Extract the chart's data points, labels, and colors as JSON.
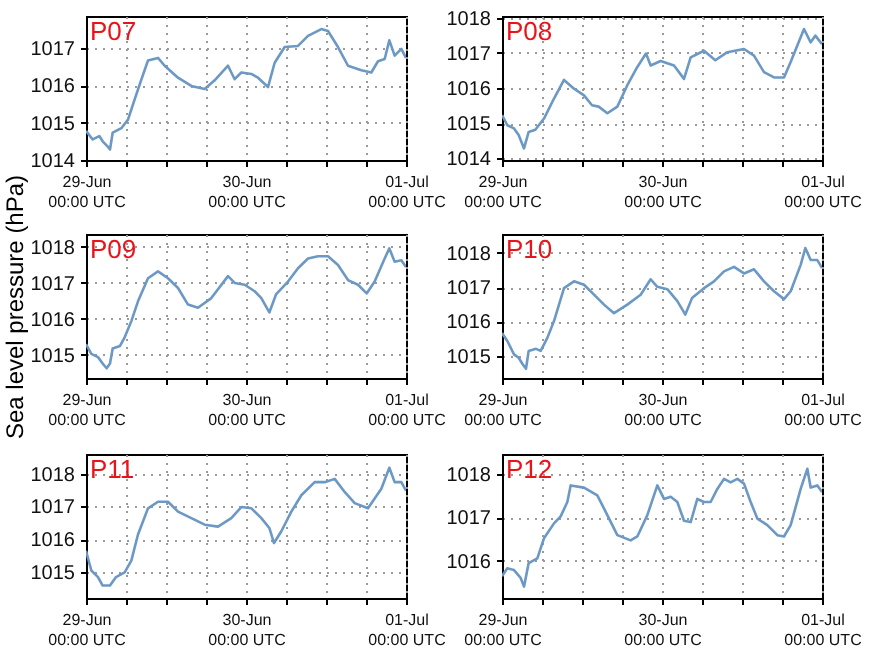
{
  "chart_data": [
    {
      "type": "line",
      "title": "P07",
      "xlim": [
        "--06-29T00:00",
        "--07-01T00:00"
      ],
      "ylim": [
        1014,
        1017.85
      ],
      "grid": true,
      "xticks": [
        {
          "value": "--06-29T00:00",
          "label": "29-Jun\n00:00 UTC"
        },
        {
          "value": "--06-29T06:00",
          "label": null
        },
        {
          "value": "--06-29T12:00",
          "label": null
        },
        {
          "value": "--06-29T18:00",
          "label": null
        },
        {
          "value": "--06-30T00:00",
          "label": "30-Jun\n00:00 UTC"
        },
        {
          "value": "--06-30T06:00",
          "label": null
        },
        {
          "value": "--06-30T12:00",
          "label": null
        },
        {
          "value": "--06-30T18:00",
          "label": null
        },
        {
          "value": "--07-01T00:00",
          "label": "01-Jul\n00:00 UTC"
        }
      ],
      "yticks": [
        1014,
        1015,
        1016,
        1017
      ],
      "series": [
        {
          "color": "#6b98c4",
          "x": [
            "--06-29T00:00",
            "--06-29T01:00",
            "--06-29T02:00",
            "--06-29T02:30",
            "--06-29T03:18",
            "--06-29T03:36",
            "--06-29T04:00",
            "--06-29T05:18",
            "--06-29T06:18",
            "--06-29T07:18",
            "--06-29T08:18",
            "--06-29T09:18",
            "--06-29T10:48",
            "--06-29T11:48",
            "--06-29T13:48",
            "--06-29T15:48",
            "--06-29T17:48",
            "--06-29T19:18",
            "--06-29T21:18",
            "--06-29T22:18",
            "--06-29T23:18",
            "--06-30T00:48",
            "--06-30T01:48",
            "--06-30T03:18",
            "--06-30T04:18",
            "--06-30T05:48",
            "--06-30T07:48",
            "--06-30T09:18",
            "--06-30T11:18",
            "--06-30T12:18",
            "--06-30T13:48",
            "--06-30T15:18",
            "--06-30T17:18",
            "--06-30T18:48",
            "--06-30T19:48",
            "--06-30T20:48",
            "--06-30T21:30",
            "--06-30T22:18",
            "--06-30T23:18",
            "--07-01T00:00"
          ],
          "values": [
            1014.78,
            1014.55,
            1014.64,
            1014.5,
            1014.35,
            1014.28,
            1014.73,
            1014.85,
            1015.08,
            1015.62,
            1016.15,
            1016.66,
            1016.73,
            1016.52,
            1016.2,
            1015.98,
            1015.9,
            1016.13,
            1016.52,
            1016.16,
            1016.34,
            1016.3,
            1016.2,
            1015.95,
            1016.6,
            1017.02,
            1017.05,
            1017.32,
            1017.5,
            1017.45,
            1017.02,
            1016.52,
            1016.4,
            1016.34,
            1016.64,
            1016.7,
            1017.2,
            1016.79,
            1016.97,
            1016.73
          ]
        }
      ]
    },
    {
      "type": "line",
      "title": "P08",
      "xlim": [
        "--06-29T00:00",
        "--07-01T00:00"
      ],
      "ylim": [
        1013.95,
        1018.05
      ],
      "grid": true,
      "xticks": [
        {
          "value": "--06-29T00:00",
          "label": "29-Jun\n00:00 UTC"
        },
        {
          "value": "--06-29T06:00",
          "label": null
        },
        {
          "value": "--06-29T12:00",
          "label": null
        },
        {
          "value": "--06-29T18:00",
          "label": null
        },
        {
          "value": "--06-30T00:00",
          "label": "30-Jun\n00:00 UTC"
        },
        {
          "value": "--06-30T06:00",
          "label": null
        },
        {
          "value": "--06-30T12:00",
          "label": null
        },
        {
          "value": "--06-30T18:00",
          "label": null
        },
        {
          "value": "--07-01T00:00",
          "label": "01-Jul\n00:00 UTC"
        }
      ],
      "yticks": [
        1014,
        1015,
        1016,
        1017,
        1018
      ],
      "series": [
        {
          "color": "#6b98c4",
          "x": [
            "--06-29T00:00",
            "--06-29T00:48",
            "--06-29T01:48",
            "--06-29T02:30",
            "--06-29T03:18",
            "--06-29T04:00",
            "--06-29T05:00",
            "--06-29T06:18",
            "--06-29T07:48",
            "--06-29T09:18",
            "--06-29T10:48",
            "--06-29T12:18",
            "--06-29T13:30",
            "--06-29T14:30",
            "--06-29T15:48",
            "--06-29T17:18",
            "--06-29T18:48",
            "--06-29T20:18",
            "--06-29T21:36",
            "--06-29T22:18",
            "--06-29T23:48",
            "--06-30T01:48",
            "--06-30T03:18",
            "--06-30T04:18",
            "--06-30T06:18",
            "--06-30T08:00",
            "--06-30T09:48",
            "--06-30T12:18",
            "--06-30T13:48",
            "--06-30T15:18",
            "--06-30T16:48",
            "--06-30T18:18",
            "--06-30T19:18",
            "--06-30T21:18",
            "--06-30T22:18",
            "--06-30T23:00",
            "--07-01T00:00"
          ],
          "values": [
            1015.23,
            1014.94,
            1014.85,
            1014.66,
            1014.28,
            1014.75,
            1014.81,
            1015.13,
            1015.7,
            1016.23,
            1015.98,
            1015.79,
            1015.51,
            1015.47,
            1015.28,
            1015.47,
            1016.08,
            1016.6,
            1016.98,
            1016.64,
            1016.77,
            1016.64,
            1016.26,
            1016.87,
            1017.06,
            1016.79,
            1017.02,
            1017.11,
            1016.92,
            1016.45,
            1016.3,
            1016.3,
            1016.74,
            1017.68,
            1017.3,
            1017.49,
            1017.25
          ]
        }
      ]
    },
    {
      "type": "line",
      "title": "P09",
      "ylabel": "Sea level pressure (hPa)",
      "xlim": [
        "--06-29T00:00",
        "--07-01T00:00"
      ],
      "ylim": [
        1014.35,
        1018.35
      ],
      "grid": true,
      "xticks": [
        {
          "value": "--06-29T00:00",
          "label": "29-Jun\n00:00 UTC"
        },
        {
          "value": "--06-29T06:00",
          "label": null
        },
        {
          "value": "--06-29T12:00",
          "label": null
        },
        {
          "value": "--06-29T18:00",
          "label": null
        },
        {
          "value": "--06-30T00:00",
          "label": "30-Jun\n00:00 UTC"
        },
        {
          "value": "--06-30T06:00",
          "label": null
        },
        {
          "value": "--06-30T12:00",
          "label": null
        },
        {
          "value": "--06-30T18:00",
          "label": null
        },
        {
          "value": "--07-01T00:00",
          "label": "01-Jul\n00:00 UTC"
        }
      ],
      "yticks": [
        1015,
        1016,
        1017,
        1018
      ],
      "series": [
        {
          "color": "#6b98c4",
          "x": [
            "--06-29T00:00",
            "--06-29T00:48",
            "--06-29T01:48",
            "--06-29T02:30",
            "--06-29T03:06",
            "--06-29T03:36",
            "--06-29T04:00",
            "--06-29T05:06",
            "--06-29T05:48",
            "--06-29T06:48",
            "--06-29T07:48",
            "--06-29T09:18",
            "--06-29T10:48",
            "--06-29T12:18",
            "--06-29T13:48",
            "--06-29T15:18",
            "--06-29T16:48",
            "--06-29T18:48",
            "--06-29T21:18",
            "--06-29T22:18",
            "--06-29T23:48",
            "--06-30T01:18",
            "--06-30T02:18",
            "--06-30T03:30",
            "--06-30T04:30",
            "--06-30T06:18",
            "--06-30T07:48",
            "--06-30T09:18",
            "--06-30T10:48",
            "--06-30T12:18",
            "--06-30T13:48",
            "--06-30T15:18",
            "--06-30T16:48",
            "--06-30T18:06",
            "--06-30T19:18",
            "--06-30T20:48",
            "--06-30T21:30",
            "--06-30T22:18",
            "--06-30T23:18",
            "--07-01T00:00"
          ],
          "values": [
            1015.29,
            1015.02,
            1014.93,
            1014.75,
            1014.62,
            1014.75,
            1015.17,
            1015.24,
            1015.48,
            1015.93,
            1016.48,
            1017.12,
            1017.31,
            1017.12,
            1016.85,
            1016.39,
            1016.3,
            1016.57,
            1017.18,
            1016.99,
            1016.94,
            1016.76,
            1016.57,
            1016.17,
            1016.67,
            1017.03,
            1017.4,
            1017.67,
            1017.73,
            1017.73,
            1017.49,
            1017.07,
            1016.94,
            1016.7,
            1017.03,
            1017.67,
            1017.95,
            1017.58,
            1017.62,
            1017.43
          ]
        }
      ]
    },
    {
      "type": "line",
      "title": "P10",
      "xlim": [
        "--06-29T00:00",
        "--07-01T00:00"
      ],
      "ylim": [
        1014.35,
        1018.55
      ],
      "grid": true,
      "xticks": [
        {
          "value": "--06-29T00:00",
          "label": "29-Jun\n00:00 UTC"
        },
        {
          "value": "--06-29T06:00",
          "label": null
        },
        {
          "value": "--06-29T12:00",
          "label": null
        },
        {
          "value": "--06-29T18:00",
          "label": null
        },
        {
          "value": "--06-30T00:00",
          "label": "30-Jun\n00:00 UTC"
        },
        {
          "value": "--06-30T06:00",
          "label": null
        },
        {
          "value": "--06-30T12:00",
          "label": null
        },
        {
          "value": "--06-30T18:00",
          "label": null
        },
        {
          "value": "--07-01T00:00",
          "label": "01-Jul\n00:00 UTC"
        }
      ],
      "yticks": [
        1015,
        1016,
        1017,
        1018
      ],
      "series": [
        {
          "color": "#6b98c4",
          "x": [
            "--06-29T00:00",
            "--06-29T00:48",
            "--06-29T01:48",
            "--06-29T02:30",
            "--06-29T03:06",
            "--06-29T03:36",
            "--06-29T04:00",
            "--06-29T05:06",
            "--06-29T05:48",
            "--06-29T06:48",
            "--06-29T07:48",
            "--06-29T09:18",
            "--06-29T10:48",
            "--06-29T12:18",
            "--06-29T13:48",
            "--06-29T15:18",
            "--06-29T16:48",
            "--06-29T18:48",
            "--06-29T20:48",
            "--06-29T22:18",
            "--06-29T23:18",
            "--06-30T00:48",
            "--06-30T02:18",
            "--06-30T03:30",
            "--06-30T04:30",
            "--06-30T06:18",
            "--06-30T07:48",
            "--06-30T09:18",
            "--06-30T10:48",
            "--06-30T12:18",
            "--06-30T13:48",
            "--06-30T15:18",
            "--06-30T16:48",
            "--06-30T18:18",
            "--06-30T19:18",
            "--06-30T20:48",
            "--06-30T21:30",
            "--06-30T22:18",
            "--06-30T23:18",
            "--07-01T00:00"
          ],
          "values": [
            1015.66,
            1015.43,
            1015.04,
            1014.94,
            1014.75,
            1014.62,
            1015.14,
            1015.2,
            1015.14,
            1015.52,
            1016.01,
            1016.97,
            1017.17,
            1017.07,
            1016.78,
            1016.49,
            1016.24,
            1016.49,
            1016.78,
            1017.23,
            1017.01,
            1016.94,
            1016.59,
            1016.2,
            1016.68,
            1016.97,
            1017.17,
            1017.46,
            1017.59,
            1017.4,
            1017.52,
            1017.17,
            1016.88,
            1016.65,
            1016.88,
            1017.65,
            1018.14,
            1017.79,
            1017.79,
            1017.56
          ]
        }
      ]
    },
    {
      "type": "line",
      "title": "P11",
      "xlim": [
        "--06-29T00:00",
        "--07-01T00:00"
      ],
      "ylim": [
        1014.2,
        1018.6
      ],
      "grid": true,
      "xticks": [
        {
          "value": "--06-29T00:00",
          "label": "29-Jun\n00:00 UTC"
        },
        {
          "value": "--06-29T06:00",
          "label": null
        },
        {
          "value": "--06-29T12:00",
          "label": null
        },
        {
          "value": "--06-29T18:00",
          "label": null
        },
        {
          "value": "--06-30T00:00",
          "label": "30-Jun\n00:00 UTC"
        },
        {
          "value": "--06-30T06:00",
          "label": null
        },
        {
          "value": "--06-30T12:00",
          "label": null
        },
        {
          "value": "--06-30T18:00",
          "label": null
        },
        {
          "value": "--07-01T00:00",
          "label": "01-Jul\n00:00 UTC"
        }
      ],
      "yticks": [
        1015,
        1016,
        1017,
        1018
      ],
      "series": [
        {
          "color": "#6b98c4",
          "x": [
            "--06-29T00:00",
            "--06-29T00:48",
            "--06-29T01:48",
            "--06-29T02:30",
            "--06-29T03:36",
            "--06-29T04:30",
            "--06-29T05:48",
            "--06-29T06:48",
            "--06-29T07:48",
            "--06-29T09:18",
            "--06-29T10:48",
            "--06-29T12:18",
            "--06-29T13:48",
            "--06-29T15:48",
            "--06-29T17:48",
            "--06-29T19:48",
            "--06-29T21:48",
            "--06-29T23:18",
            "--06-30T00:48",
            "--06-30T02:18",
            "--06-30T03:30",
            "--06-30T04:12",
            "--06-30T05:18",
            "--06-30T06:48",
            "--06-30T08:18",
            "--06-30T10:18",
            "--06-30T11:48",
            "--06-30T13:18",
            "--06-30T14:48",
            "--06-30T16:18",
            "--06-30T18:18",
            "--06-30T20:18",
            "--06-30T21:30",
            "--06-30T22:18",
            "--06-30T23:18",
            "--07-01T00:00"
          ],
          "values": [
            1015.64,
            1015.04,
            1014.84,
            1014.58,
            1014.58,
            1014.84,
            1014.98,
            1015.34,
            1016.14,
            1016.94,
            1017.14,
            1017.14,
            1016.84,
            1016.64,
            1016.44,
            1016.38,
            1016.64,
            1016.98,
            1016.94,
            1016.64,
            1016.34,
            1015.88,
            1016.24,
            1016.84,
            1017.34,
            1017.74,
            1017.74,
            1017.84,
            1017.44,
            1017.1,
            1016.94,
            1017.54,
            1018.18,
            1017.74,
            1017.74,
            1017.48
          ]
        }
      ]
    },
    {
      "type": "line",
      "title": "P12",
      "xlim": [
        "--06-29T00:00",
        "--07-01T00:00"
      ],
      "ylim": [
        1015.15,
        1018.45
      ],
      "grid": true,
      "xticks": [
        {
          "value": "--06-29T00:00",
          "label": "29-Jun\n00:00 UTC"
        },
        {
          "value": "--06-29T06:00",
          "label": null
        },
        {
          "value": "--06-29T12:00",
          "label": null
        },
        {
          "value": "--06-29T18:00",
          "label": null
        },
        {
          "value": "--06-30T00:00",
          "label": "30-Jun\n00:00 UTC"
        },
        {
          "value": "--06-30T06:00",
          "label": null
        },
        {
          "value": "--06-30T12:00",
          "label": null
        },
        {
          "value": "--06-30T18:00",
          "label": null
        },
        {
          "value": "--07-01T00:00",
          "label": "01-Jul\n00:00 UTC"
        }
      ],
      "yticks": [
        1016,
        1017,
        1018
      ],
      "series": [
        {
          "color": "#6b98c4",
          "x": [
            "--06-29T00:00",
            "--06-29T00:48",
            "--06-29T01:48",
            "--06-29T02:48",
            "--06-29T03:18",
            "--06-29T04:00",
            "--06-29T05:18",
            "--06-29T06:18",
            "--06-29T07:48",
            "--06-29T08:48",
            "--06-29T09:48",
            "--06-29T10:18",
            "--06-29T12:18",
            "--06-29T14:18",
            "--06-29T15:48",
            "--06-29T17:18",
            "--06-29T19:18",
            "--06-29T20:18",
            "--06-29T21:48",
            "--06-29T23:18",
            "--06-30T00:18",
            "--06-30T01:18",
            "--06-30T02:18",
            "--06-30T03:18",
            "--06-30T04:18",
            "--06-30T05:18",
            "--06-30T06:18",
            "--06-30T07:18",
            "--06-30T08:18",
            "--06-30T09:18",
            "--06-30T10:18",
            "--06-30T11:18",
            "--06-30T12:18",
            "--06-30T13:18",
            "--06-30T14:18",
            "--06-30T15:48",
            "--06-30T17:18",
            "--06-30T18:18",
            "--06-30T19:18",
            "--06-30T20:48",
            "--06-30T21:48",
            "--06-30T22:18",
            "--06-30T23:18",
            "--07-01T00:00"
          ],
          "values": [
            1015.65,
            1015.83,
            1015.79,
            1015.61,
            1015.41,
            1015.95,
            1016.06,
            1016.52,
            1016.86,
            1017.02,
            1017.35,
            1017.73,
            1017.68,
            1017.5,
            1017.05,
            1016.59,
            1016.47,
            1016.56,
            1017.05,
            1017.73,
            1017.42,
            1017.47,
            1017.35,
            1016.92,
            1016.89,
            1017.42,
            1017.35,
            1017.35,
            1017.65,
            1017.88,
            1017.8,
            1017.88,
            1017.77,
            1017.35,
            1016.97,
            1016.82,
            1016.59,
            1016.56,
            1016.82,
            1017.65,
            1018.11,
            1017.68,
            1017.73,
            1017.58
          ]
        }
      ]
    }
  ]
}
